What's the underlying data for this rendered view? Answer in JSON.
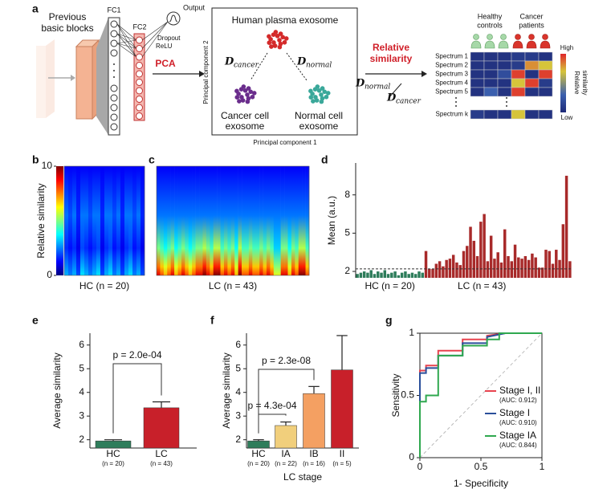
{
  "panel_labels": [
    "a",
    "b",
    "c",
    "d",
    "e",
    "f",
    "g"
  ],
  "diagram": {
    "previous_blocks": [
      "Previous",
      "basic blocks"
    ],
    "fc1": "FC1",
    "fc2": "FC2",
    "output": "Output",
    "dropout": "Dropout",
    "relu": "ReLU",
    "pca": "PCA",
    "box_title": "Human plasma exosome",
    "distance_cancer": {
      "symbol": "D",
      "subscript": "cancer"
    },
    "distance_normal": {
      "symbol": "D",
      "subscript": "normal"
    },
    "cancer_cell": [
      "Cancer cell",
      "exosome"
    ],
    "normal_cell": [
      "Normal cell",
      "exosome"
    ],
    "pc2": "Principal component 2",
    "pc1": "Principal component 1",
    "relative_similarity": [
      "Relative",
      "similarity"
    ],
    "ratio_numerator": {
      "symbol": "D",
      "subscript": "normal"
    },
    "ratio_denominator": {
      "symbol": "D",
      "subscript": "cancer"
    },
    "healthy_controls": [
      "Healthy",
      "controls"
    ],
    "cancer_patients": [
      "Cancer",
      "patients"
    ],
    "spectra": [
      "Spectrum 1",
      "Spectrum 2",
      "Spectrum 3",
      "Spectrum 4",
      "Spectrum 5",
      "Spectrum k"
    ],
    "matrix": [
      [
        0.05,
        0.05,
        0.05,
        0.1,
        0.1,
        0.05
      ],
      [
        0.05,
        0.05,
        0.05,
        0.1,
        0.8,
        0.7
      ],
      [
        0.05,
        0.05,
        0.2,
        0.95,
        0.05,
        0.95
      ],
      [
        0.05,
        0.05,
        0.05,
        0.7,
        0.95,
        0.1
      ],
      [
        0.05,
        0.3,
        0.05,
        0.95,
        0.05,
        0.05
      ],
      [
        0.1,
        0.05,
        0.05,
        0.7,
        0.05,
        0.05
      ]
    ],
    "colorbar_high": "High",
    "colorbar_low": "Low",
    "colorbar_label": [
      "Relative",
      "similarity"
    ]
  },
  "chart_data": [
    {
      "type": "heatmap",
      "xlabel": "HC (n = 20)",
      "ylabel": "Relative similarity",
      "clim": [
        0,
        10
      ],
      "colorbar_ticks": [
        0,
        10
      ],
      "values": [
        3,
        2.5,
        3,
        2,
        3.5,
        3,
        2.5,
        3,
        3.5,
        2,
        3,
        3.5,
        2.5,
        3,
        2,
        3,
        3.5,
        2.5,
        3,
        2
      ]
    },
    {
      "type": "heatmap",
      "xlabel": "LC (n = 43)",
      "clim": [
        0,
        10
      ],
      "values": [
        9,
        8,
        7,
        8,
        9,
        7,
        8,
        9,
        8,
        7,
        8,
        9,
        9,
        10,
        9,
        8,
        10,
        10,
        8,
        9,
        8,
        9,
        7,
        10,
        8,
        8,
        9,
        8,
        8,
        9,
        8,
        9,
        8,
        6,
        6,
        9,
        9,
        7,
        9,
        8,
        10,
        10,
        8
      ]
    },
    {
      "type": "groupbar",
      "ylabel": "Mean (a.u.)",
      "ylim": [
        1.5,
        10.5
      ],
      "yticks": [
        2,
        5,
        8
      ],
      "threshold": 2.2,
      "groups": [
        {
          "label": "HC (n = 20)",
          "color": "#2e7d5b",
          "values": [
            1.8,
            1.9,
            2.0,
            1.9,
            2.1,
            1.8,
            2.0,
            1.9,
            2.1,
            1.8,
            1.9,
            2.0,
            1.7,
            1.9,
            2.0,
            1.8,
            1.9,
            1.8,
            2.0,
            1.9
          ]
        },
        {
          "label": "LC (n = 43)",
          "color": "#a82a2a",
          "values": [
            3.6,
            2.2,
            2.2,
            2.6,
            2.8,
            2.4,
            2.9,
            3.0,
            3.3,
            2.7,
            2.5,
            3.6,
            4.0,
            5.5,
            4.4,
            3.2,
            5.9,
            6.5,
            2.8,
            4.8,
            3.0,
            3.5,
            2.7,
            5.3,
            3.2,
            2.8,
            4.1,
            3.1,
            3.0,
            3.2,
            2.9,
            3.4,
            3.1,
            2.3,
            2.3,
            3.7,
            3.6,
            2.6,
            3.7,
            2.9,
            5.7,
            9.5,
            2.8
          ]
        }
      ]
    },
    {
      "type": "bar",
      "ylabel": "Average similarity",
      "ylim": [
        1.65,
        6.5
      ],
      "yticks": [
        2,
        3,
        4,
        5,
        6
      ],
      "categories": [
        "HC",
        "LC"
      ],
      "sublabels": [
        "(n = 20)",
        "(n = 43)"
      ],
      "values": [
        1.95,
        3.35
      ],
      "errors": [
        0.05,
        0.25
      ],
      "colors": [
        "#2e7d5b",
        "#c8202a"
      ],
      "annotations": [
        "p = 2.0e-04"
      ]
    },
    {
      "type": "bar",
      "ylabel": "Average similarity",
      "xlabel": "LC stage",
      "ylim": [
        1.65,
        6.5
      ],
      "yticks": [
        2,
        3,
        4,
        5,
        6
      ],
      "categories": [
        "HC",
        "IA",
        "IB",
        "II"
      ],
      "sublabels": [
        "(n = 20)",
        "(n = 22)",
        "(n = 16)",
        "(n = 5)"
      ],
      "values": [
        1.95,
        2.6,
        3.95,
        4.95
      ],
      "errors": [
        0.05,
        0.15,
        0.3,
        1.45
      ],
      "colors": [
        "#2e7d5b",
        "#f1cf7c",
        "#f4a062",
        "#c8202a"
      ],
      "annotations": [
        "p = 4.3e-04",
        "p = 2.3e-08"
      ]
    },
    {
      "type": "line",
      "xlabel": "1- Specificity",
      "ylabel": "Sensitivity",
      "xlim": [
        0,
        1
      ],
      "ylim": [
        0,
        1
      ],
      "xticks": [
        0,
        0.5,
        1
      ],
      "yticks": [
        0,
        0.5,
        1
      ],
      "series": [
        {
          "name": "Stage I, II",
          "auc": "(AUC: 0.912)",
          "color": "#e8434f",
          "x": [
            0,
            0,
            0.05,
            0.05,
            0.15,
            0.15,
            0.35,
            0.35,
            0.55,
            0.55,
            0.7,
            1
          ],
          "values": [
            0,
            0.7,
            0.7,
            0.74,
            0.74,
            0.86,
            0.86,
            0.95,
            0.95,
            0.98,
            1,
            1
          ]
        },
        {
          "name": "Stage I",
          "auc": "(AUC: 0.910)",
          "color": "#2a4f9a",
          "x": [
            0,
            0,
            0.05,
            0.05,
            0.15,
            0.15,
            0.35,
            0.35,
            0.55,
            0.55,
            0.7,
            1
          ],
          "values": [
            0,
            0.68,
            0.68,
            0.72,
            0.72,
            0.82,
            0.82,
            0.92,
            0.92,
            0.97,
            1,
            1
          ]
        },
        {
          "name": "Stage IA",
          "auc": "(AUC: 0.844)",
          "color": "#2fa84f",
          "x": [
            0,
            0,
            0.05,
            0.05,
            0.15,
            0.15,
            0.35,
            0.35,
            0.55,
            0.55,
            0.65,
            0.65,
            1
          ],
          "values": [
            0,
            0.45,
            0.45,
            0.5,
            0.5,
            0.82,
            0.82,
            0.9,
            0.9,
            0.95,
            0.95,
            1,
            1
          ]
        }
      ]
    }
  ]
}
